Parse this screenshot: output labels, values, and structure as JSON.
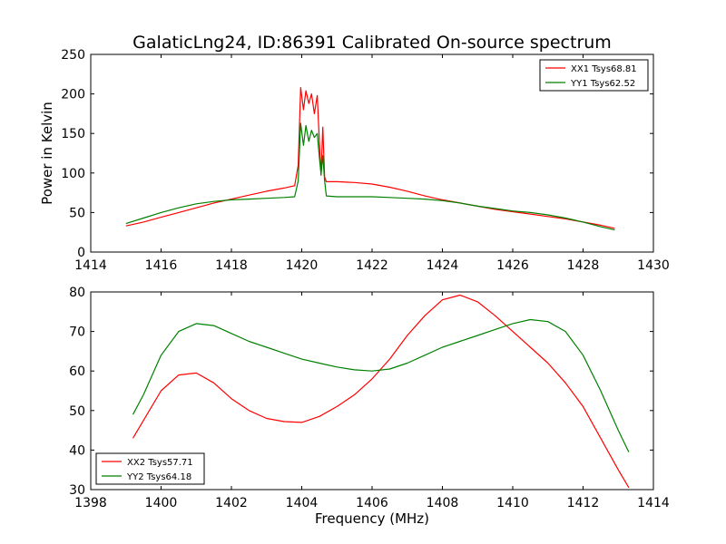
{
  "figure": {
    "title": "GalaticLng24, ID:86391 Calibrated On-source spectrum",
    "xlabel": "Frequency (MHz)"
  },
  "chart_data": [
    {
      "type": "line",
      "title": "GalaticLng24, ID:86391 Calibrated On-source spectrum",
      "xlabel": "",
      "ylabel": "Power in Kelvin",
      "xlim": [
        1414,
        1430
      ],
      "ylim": [
        0,
        250
      ],
      "xticks": [
        1414,
        1416,
        1418,
        1420,
        1422,
        1424,
        1426,
        1428,
        1430
      ],
      "yticks": [
        0,
        50,
        100,
        150,
        200,
        250
      ],
      "grid": false,
      "legend_position": "top-right",
      "series": [
        {
          "name": "XX1 Tsys68.81",
          "color": "#ff0000",
          "points": [
            [
              1415.0,
              33
            ],
            [
              1415.5,
              38
            ],
            [
              1416.0,
              44
            ],
            [
              1416.5,
              50
            ],
            [
              1417.0,
              56
            ],
            [
              1417.5,
              62
            ],
            [
              1418.0,
              67
            ],
            [
              1418.5,
              72
            ],
            [
              1419.0,
              77
            ],
            [
              1419.5,
              81
            ],
            [
              1419.8,
              84
            ],
            [
              1419.9,
              110
            ],
            [
              1419.97,
              208
            ],
            [
              1420.05,
              180
            ],
            [
              1420.12,
              204
            ],
            [
              1420.2,
              188
            ],
            [
              1420.28,
              200
            ],
            [
              1420.36,
              175
            ],
            [
              1420.44,
              198
            ],
            [
              1420.5,
              140
            ],
            [
              1420.55,
              97
            ],
            [
              1420.6,
              158
            ],
            [
              1420.65,
              95
            ],
            [
              1420.7,
              89
            ],
            [
              1421.0,
              89
            ],
            [
              1421.5,
              88
            ],
            [
              1422.0,
              86
            ],
            [
              1422.5,
              82
            ],
            [
              1423.0,
              77
            ],
            [
              1423.5,
              71
            ],
            [
              1424.0,
              66
            ],
            [
              1424.5,
              62
            ],
            [
              1425.0,
              58
            ],
            [
              1425.5,
              54
            ],
            [
              1426.0,
              51
            ],
            [
              1426.5,
              48
            ],
            [
              1427.0,
              45
            ],
            [
              1427.5,
              42
            ],
            [
              1428.0,
              38
            ],
            [
              1428.5,
              34
            ],
            [
              1428.9,
              30
            ]
          ]
        },
        {
          "name": "YY1 Tsys62.52",
          "color": "#008000",
          "points": [
            [
              1415.0,
              36
            ],
            [
              1415.5,
              43
            ],
            [
              1416.0,
              50
            ],
            [
              1416.5,
              56
            ],
            [
              1417.0,
              61
            ],
            [
              1417.5,
              64
            ],
            [
              1418.0,
              66
            ],
            [
              1418.5,
              67
            ],
            [
              1419.0,
              68
            ],
            [
              1419.5,
              69
            ],
            [
              1419.8,
              70
            ],
            [
              1419.9,
              90
            ],
            [
              1419.97,
              163
            ],
            [
              1420.05,
              135
            ],
            [
              1420.12,
              160
            ],
            [
              1420.2,
              140
            ],
            [
              1420.28,
              154
            ],
            [
              1420.36,
              145
            ],
            [
              1420.44,
              150
            ],
            [
              1420.5,
              120
            ],
            [
              1420.55,
              98
            ],
            [
              1420.6,
              122
            ],
            [
              1420.65,
              90
            ],
            [
              1420.7,
              71
            ],
            [
              1421.0,
              70
            ],
            [
              1421.5,
              70
            ],
            [
              1422.0,
              70
            ],
            [
              1422.5,
              69
            ],
            [
              1423.0,
              68
            ],
            [
              1423.5,
              67
            ],
            [
              1424.0,
              65
            ],
            [
              1424.5,
              62
            ],
            [
              1425.0,
              58
            ],
            [
              1425.5,
              55
            ],
            [
              1426.0,
              52
            ],
            [
              1426.5,
              50
            ],
            [
              1427.0,
              47
            ],
            [
              1427.5,
              43
            ],
            [
              1428.0,
              38
            ],
            [
              1428.5,
              32
            ],
            [
              1428.9,
              28
            ]
          ]
        }
      ]
    },
    {
      "type": "line",
      "title": "",
      "xlabel": "Frequency (MHz)",
      "ylabel": "",
      "xlim": [
        1398,
        1414
      ],
      "ylim": [
        30,
        80
      ],
      "xticks": [
        1398,
        1400,
        1402,
        1404,
        1406,
        1408,
        1410,
        1412,
        1414
      ],
      "yticks": [
        30,
        40,
        50,
        60,
        70,
        80
      ],
      "grid": false,
      "legend_position": "bottom-left",
      "series": [
        {
          "name": "XX2 Tsys57.71",
          "color": "#ff0000",
          "points": [
            [
              1399.2,
              43
            ],
            [
              1399.5,
              47.5
            ],
            [
              1400.0,
              55
            ],
            [
              1400.5,
              59
            ],
            [
              1401.0,
              59.5
            ],
            [
              1401.5,
              57
            ],
            [
              1402.0,
              53
            ],
            [
              1402.5,
              50
            ],
            [
              1403.0,
              48
            ],
            [
              1403.5,
              47.2
            ],
            [
              1404.0,
              47
            ],
            [
              1404.5,
              48.5
            ],
            [
              1405.0,
              51
            ],
            [
              1405.5,
              54
            ],
            [
              1406.0,
              58
            ],
            [
              1406.5,
              63
            ],
            [
              1407.0,
              69
            ],
            [
              1407.5,
              74
            ],
            [
              1408.0,
              78
            ],
            [
              1408.5,
              79.2
            ],
            [
              1409.0,
              77.5
            ],
            [
              1409.5,
              74
            ],
            [
              1410.0,
              70
            ],
            [
              1410.5,
              66
            ],
            [
              1411.0,
              62
            ],
            [
              1411.5,
              57
            ],
            [
              1412.0,
              51
            ],
            [
              1412.5,
              43
            ],
            [
              1413.0,
              35
            ],
            [
              1413.3,
              30.5
            ]
          ]
        },
        {
          "name": "YY2 Tsys64.18",
          "color": "#008000",
          "points": [
            [
              1399.2,
              49
            ],
            [
              1399.5,
              54
            ],
            [
              1400.0,
              64
            ],
            [
              1400.5,
              70
            ],
            [
              1401.0,
              72
            ],
            [
              1401.5,
              71.5
            ],
            [
              1402.0,
              69.5
            ],
            [
              1402.5,
              67.5
            ],
            [
              1403.0,
              66
            ],
            [
              1403.5,
              64.5
            ],
            [
              1404.0,
              63
            ],
            [
              1404.5,
              62
            ],
            [
              1405.0,
              61
            ],
            [
              1405.5,
              60.3
            ],
            [
              1406.0,
              60
            ],
            [
              1406.5,
              60.5
            ],
            [
              1407.0,
              62
            ],
            [
              1407.5,
              64
            ],
            [
              1408.0,
              66
            ],
            [
              1408.5,
              67.5
            ],
            [
              1409.0,
              69
            ],
            [
              1409.5,
              70.5
            ],
            [
              1410.0,
              72
            ],
            [
              1410.5,
              73
            ],
            [
              1411.0,
              72.5
            ],
            [
              1411.5,
              70
            ],
            [
              1412.0,
              64
            ],
            [
              1412.5,
              55
            ],
            [
              1413.0,
              45
            ],
            [
              1413.3,
              39.5
            ]
          ]
        }
      ]
    }
  ]
}
